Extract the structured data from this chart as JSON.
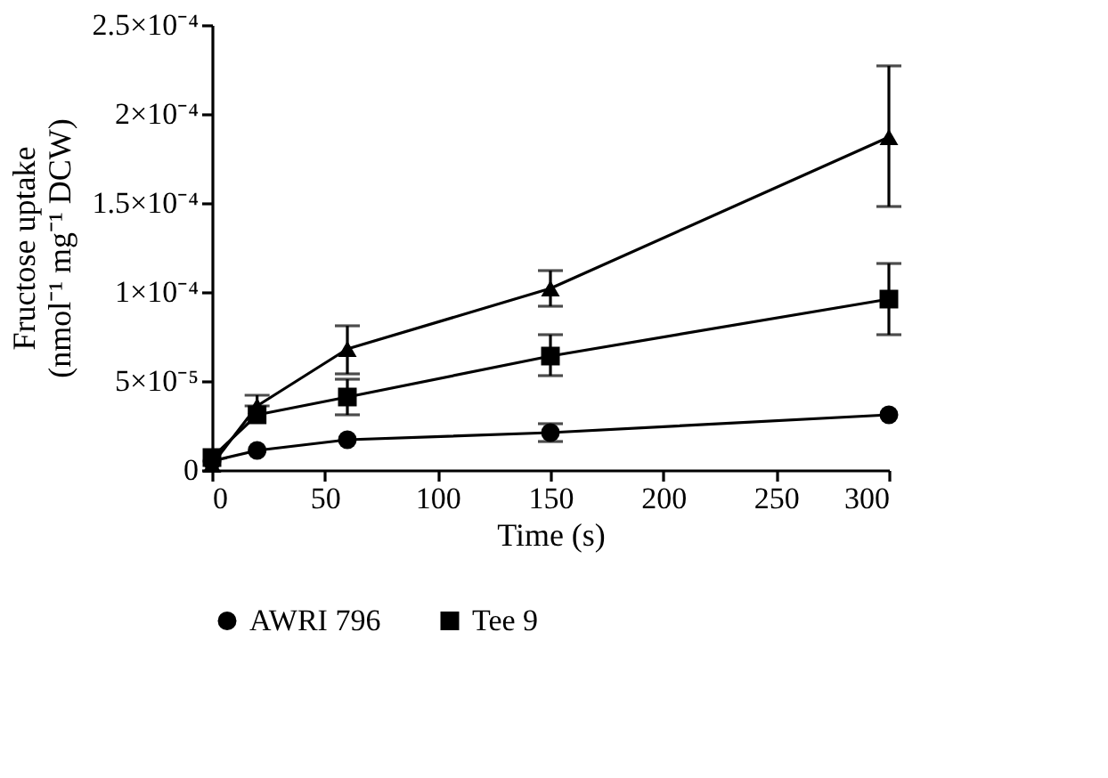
{
  "chart_data": {
    "type": "line",
    "xlabel": "Time (s)",
    "ylabel": [
      "Fructose uptake",
      "(nmol⁻¹ mg⁻¹ DCW)"
    ],
    "x": [
      0,
      20,
      60,
      150,
      300
    ],
    "xlim": [
      0,
      300
    ],
    "xticks": [
      0,
      50,
      100,
      150,
      200,
      250,
      300
    ],
    "ylim": [
      0,
      0.00025
    ],
    "yticks": [
      {
        "value": 0,
        "label": "0"
      },
      {
        "value": 5e-05,
        "label": "5×10⁻⁵"
      },
      {
        "value": 0.0001,
        "label": "1×10⁻⁴"
      },
      {
        "value": 0.00015,
        "label": "1.5×10⁻⁴"
      },
      {
        "value": 0.0002,
        "label": "2×10⁻⁴"
      },
      {
        "value": 0.00025,
        "label": "2.5×10⁻⁴"
      }
    ],
    "grid": false,
    "legend": "bottom",
    "line_style": "solid",
    "series": [
      {
        "name": "AWRI 796",
        "color": "#000000",
        "marker": "circle",
        "values": [
          5e-06,
          1.1e-05,
          1.7e-05,
          2.1e-05,
          3.1e-05
        ],
        "errors": [
          null,
          null,
          null,
          [
            1.6e-05,
            2.6e-05
          ],
          null
        ]
      },
      {
        "name": "Tee 9",
        "color": "#000000",
        "marker": "square",
        "values": [
          7e-06,
          3.1e-05,
          4.1e-05,
          6.4e-05,
          9.6e-05
        ],
        "errors": [
          null,
          null,
          [
            3.1e-05,
            5.1e-05
          ],
          [
            5.3e-05,
            7.6e-05
          ],
          [
            7.6e-05,
            0.000116
          ]
        ]
      },
      {
        "color": "#000000",
        "marker": "triangle",
        "values": [
          3e-06,
          3.6e-05,
          6.8e-05,
          0.000102,
          0.000187
        ],
        "errors": [
          null,
          [
            3.6e-05,
            4.2e-05
          ],
          [
            5.4e-05,
            8.1e-05
          ],
          [
            9.2e-05,
            0.000112
          ],
          [
            0.000148,
            0.000227
          ]
        ]
      }
    ]
  }
}
